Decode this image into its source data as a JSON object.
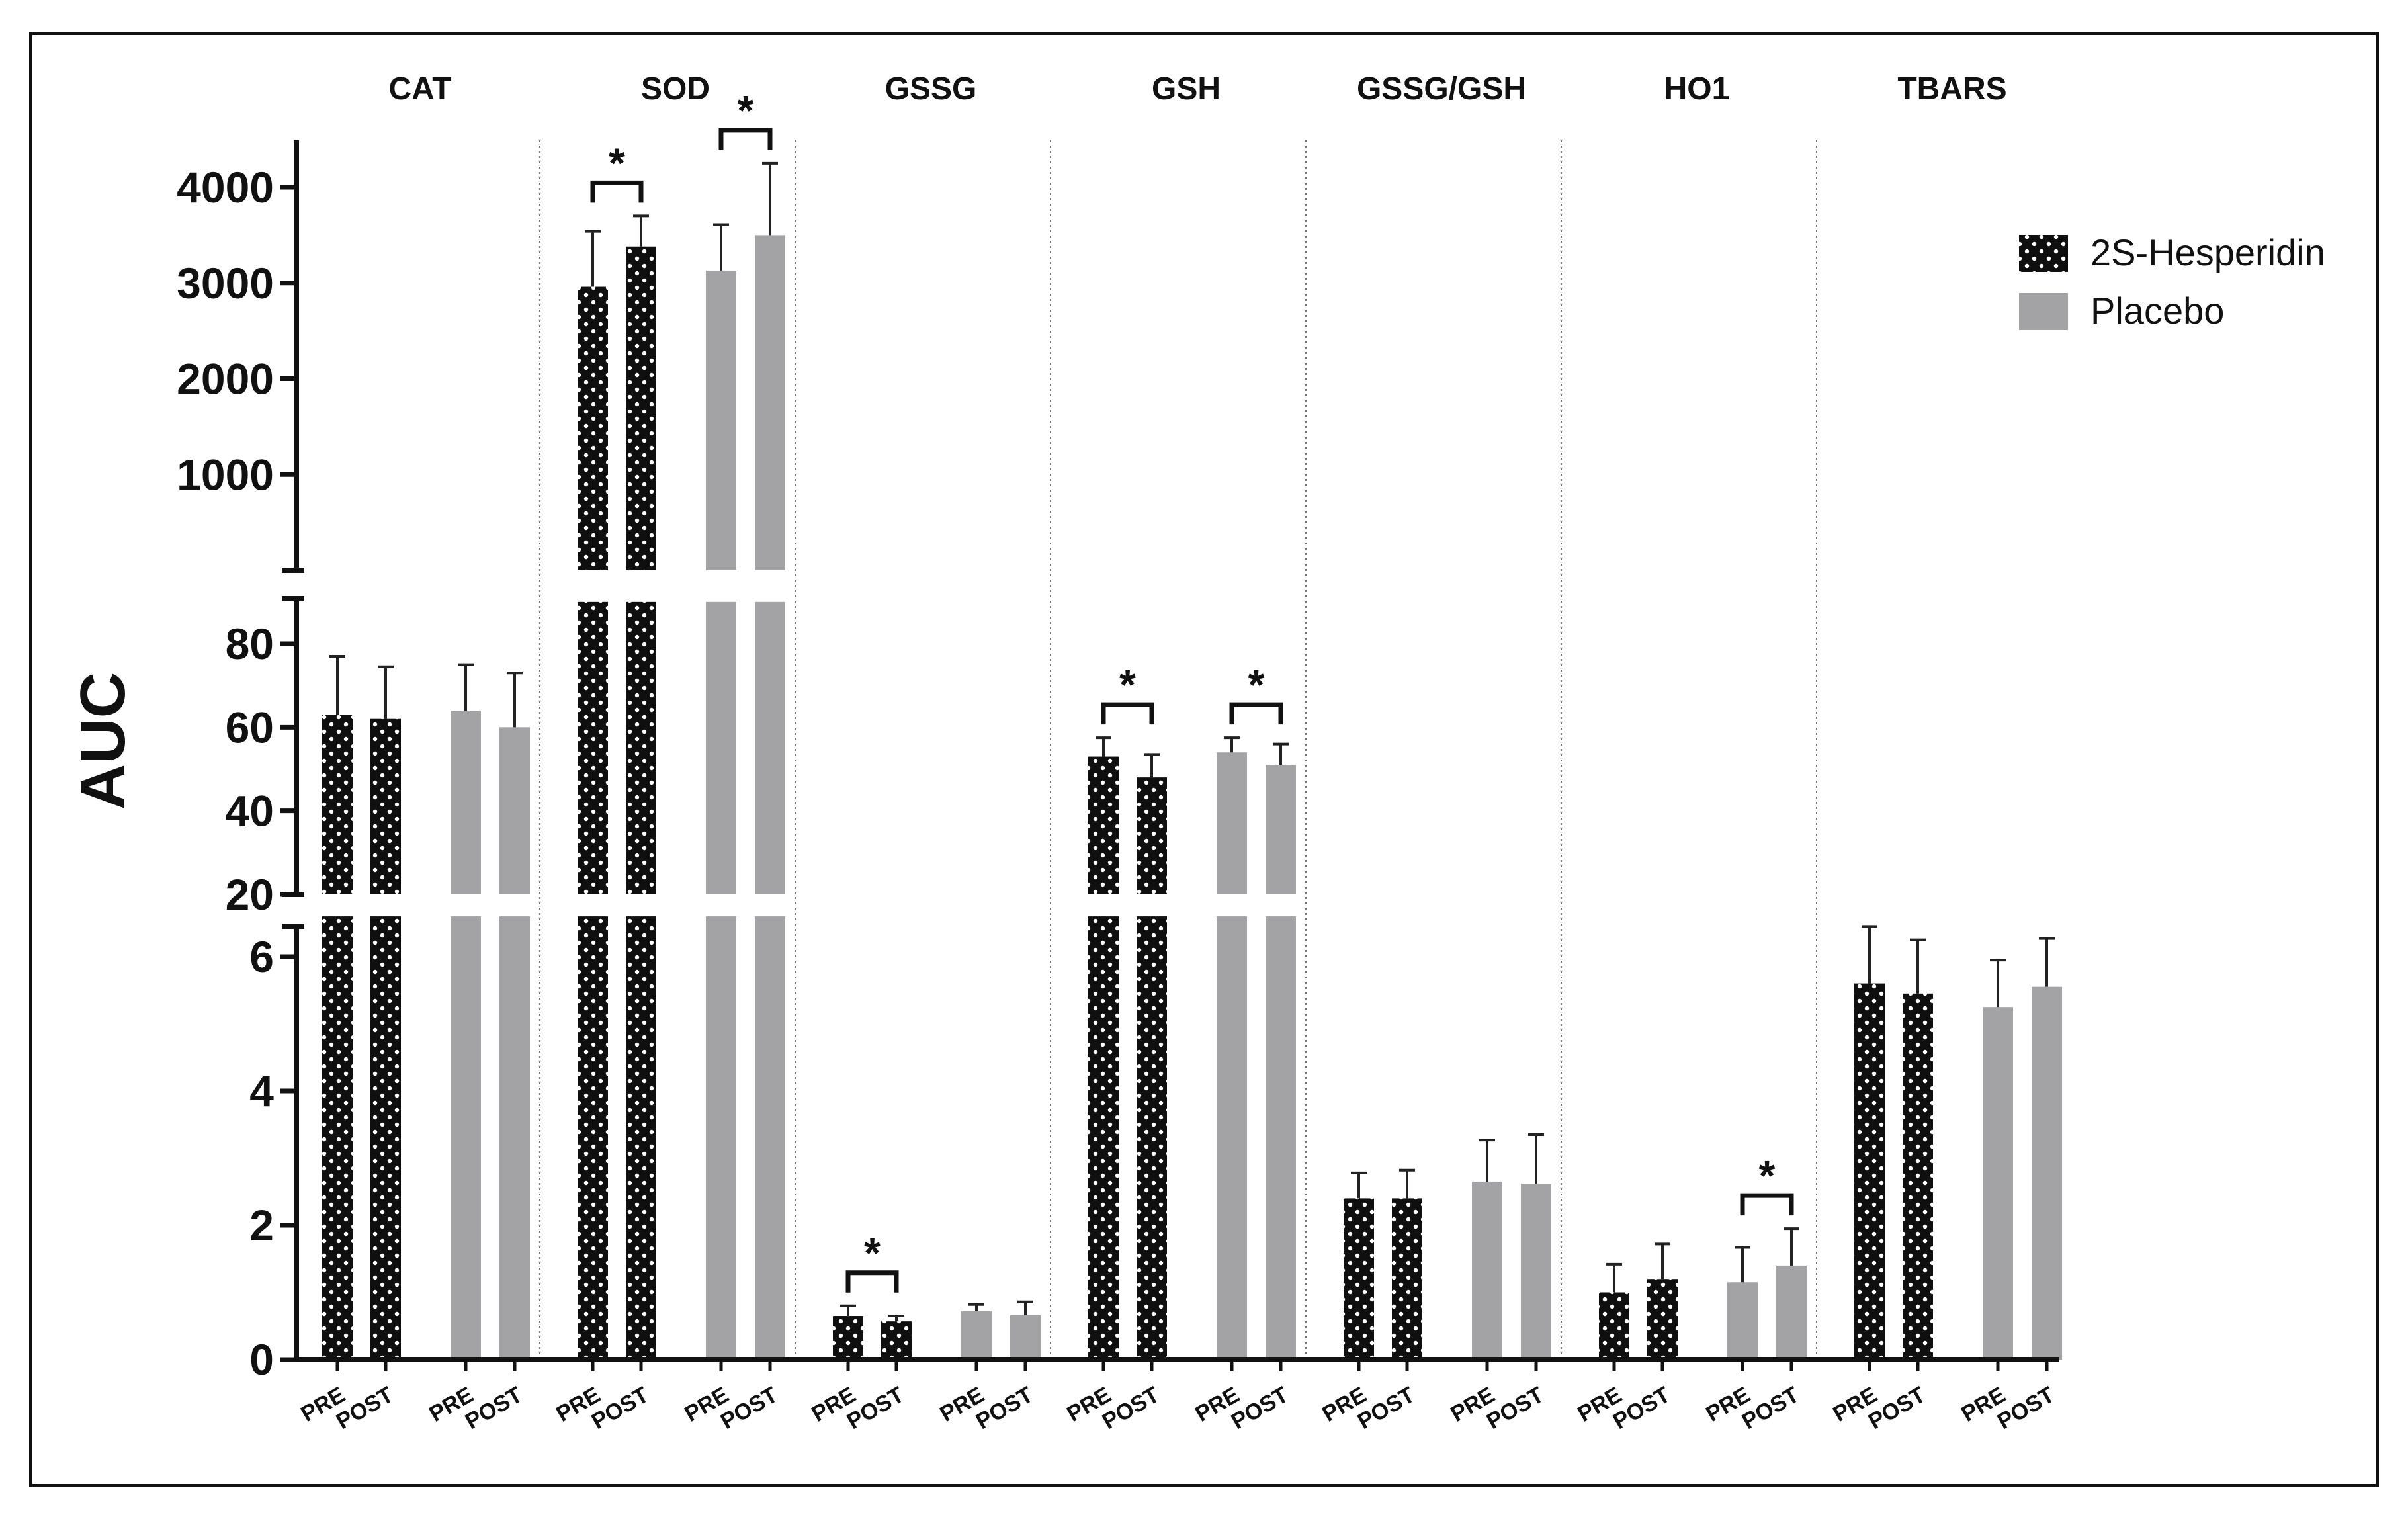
{
  "chart_data": {
    "type": "bar",
    "ylabel": "AUC",
    "groups": [
      "CAT",
      "SOD",
      "GSSG",
      "GSH",
      "GSSG/GSH",
      "HO1",
      "TBARS"
    ],
    "categories": [
      "PRE",
      "POST",
      "PRE",
      "POST"
    ],
    "series": [
      {
        "name": "2S-Hesperidin",
        "color": "#0f0f0f",
        "pattern": "dots",
        "pre": [
          63,
          2960,
          0.65,
          53,
          2.4,
          1.0,
          5.6
        ],
        "post": [
          62,
          3380,
          0.57,
          48,
          2.4,
          1.2,
          5.45
        ],
        "pre_err": [
          14,
          580,
          0.15,
          4.5,
          0.38,
          0.42,
          0.85
        ],
        "post_err": [
          12.5,
          320,
          0.08,
          5.5,
          0.42,
          0.52,
          0.8
        ]
      },
      {
        "name": "Placebo",
        "color": "#a3a3a6",
        "pattern": "solid",
        "pre": [
          64,
          3130,
          0.72,
          54,
          2.65,
          1.15,
          5.25
        ],
        "post": [
          60,
          3500,
          0.66,
          51,
          2.62,
          1.4,
          5.55
        ],
        "pre_err": [
          11,
          480,
          0.1,
          3.5,
          0.62,
          0.52,
          0.7
        ],
        "post_err": [
          13,
          750,
          0.2,
          5,
          0.73,
          0.55,
          0.72
        ]
      }
    ],
    "y_axis_segments": [
      {
        "range": [
          0,
          6.6
        ],
        "ticks": [
          0,
          2,
          4,
          6
        ],
        "tick_labels": [
          "0",
          "2",
          "4",
          "6"
        ]
      },
      {
        "range": [
          20,
          90
        ],
        "ticks": [
          20,
          40,
          60,
          80
        ],
        "tick_labels": [
          "20",
          "40",
          "60",
          "80"
        ]
      },
      {
        "range": [
          0,
          4500
        ],
        "ticks": [
          1000,
          2000,
          3000,
          4000
        ],
        "tick_labels": [
          "1000",
          "2000",
          "3000",
          "4000"
        ]
      }
    ],
    "significance": [
      {
        "group": "SOD",
        "series": "2S-Hesperidin",
        "label": "*"
      },
      {
        "group": "SOD",
        "series": "Placebo",
        "label": "*"
      },
      {
        "group": "GSSG",
        "series": "2S-Hesperidin",
        "label": "*"
      },
      {
        "group": "GSH",
        "series": "2S-Hesperidin",
        "label": "*"
      },
      {
        "group": "GSH",
        "series": "Placebo",
        "label": "*"
      },
      {
        "group": "HO1",
        "series": "Placebo",
        "label": "*"
      }
    ],
    "legend": {
      "position": "top-right",
      "entries": [
        "2S-Hesperidin",
        "Placebo"
      ]
    }
  }
}
